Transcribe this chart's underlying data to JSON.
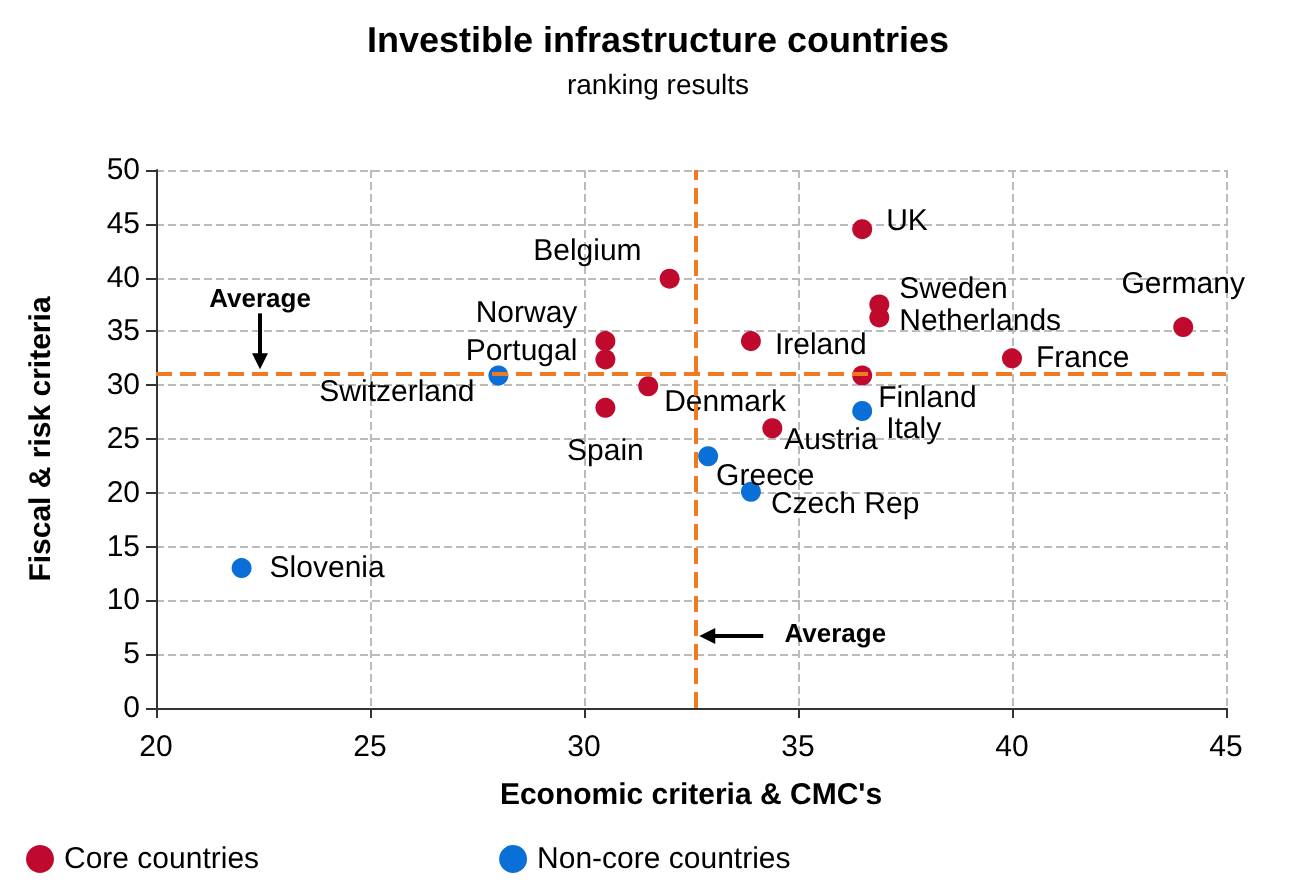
{
  "chart_data": {
    "type": "scatter",
    "title": "Investible infrastructure countries",
    "subtitle": "ranking results",
    "xlabel": "Economic criteria & CMC's",
    "ylabel": "Fiscal & risk criteria",
    "xlim": [
      20,
      45
    ],
    "xticks": [
      20,
      25,
      30,
      35,
      40,
      45
    ],
    "ylim": [
      0,
      50
    ],
    "yticks": [
      0,
      5,
      10,
      15,
      20,
      25,
      30,
      35,
      40,
      45,
      50
    ],
    "grid": true,
    "legend": "bottom",
    "marker": "circle",
    "series": [
      {
        "name": "Core countries",
        "color": "#c00a2d",
        "x": [
          32.0,
          30.5,
          30.5,
          30.5,
          31.5,
          36.5,
          36.9,
          36.9,
          33.9,
          36.5,
          34.4,
          40.0,
          44.0
        ],
        "values": [
          39.9,
          34.1,
          32.4,
          27.9,
          29.9,
          44.5,
          37.5,
          36.3,
          34.1,
          30.9,
          26.0,
          32.5,
          35.4
        ],
        "value_labels": [
          "Belgium",
          "Norway",
          "Portugal",
          "Spain",
          "Denmark",
          "UK",
          "Sweden",
          "Netherlands",
          "Ireland",
          "Finland",
          "Austria",
          "France",
          "Germany"
        ]
      },
      {
        "name": "Non-core countries",
        "color": "#0a6fd6",
        "x": [
          22.0,
          28.0,
          36.5,
          32.9,
          33.9
        ],
        "values": [
          13.0,
          30.9,
          27.6,
          23.4,
          20.1
        ],
        "value_labels": [
          "Slovenia",
          "Switzerland",
          "Italy",
          "Greece",
          "Czech Rep"
        ]
      }
    ],
    "ref_lines": [
      {
        "axis": "y",
        "value": 31.1,
        "label": "Average",
        "color": "#f07a22",
        "line_style": "dashed"
      },
      {
        "axis": "x",
        "value": 32.6,
        "label": "Average",
        "color": "#f07a22",
        "line_style": "dashed"
      }
    ]
  }
}
